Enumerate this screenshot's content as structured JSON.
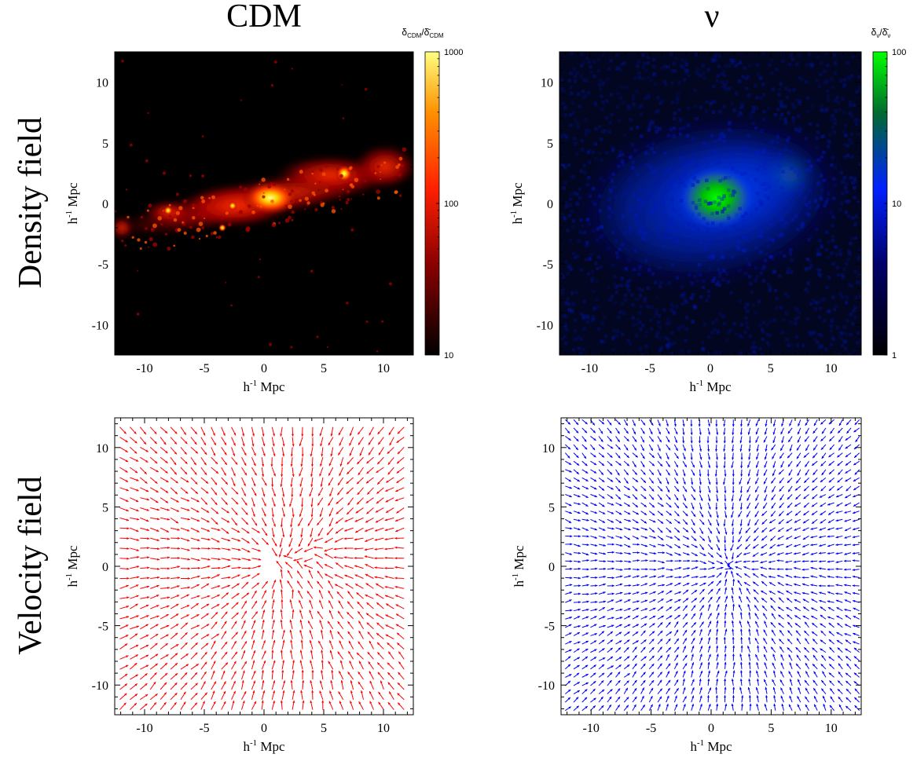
{
  "figure": {
    "column_titles": [
      "CDM",
      "ν"
    ],
    "row_labels": [
      "Density field",
      "Velocity field"
    ]
  },
  "chart_data": [
    {
      "type": "heatmap",
      "panel": "CDM density",
      "xlabel": "h-1 Mpc",
      "ylabel": "h-1 Mpc",
      "xlim": [
        -12.5,
        12.5
      ],
      "ylim": [
        -12.5,
        12.5
      ],
      "xticks": [
        -10,
        -5,
        0,
        5,
        10
      ],
      "yticks": [
        -10,
        -5,
        0,
        5,
        10
      ],
      "colorbar": {
        "label": "δCDM/δ̄CDM",
        "scale": "log",
        "range": [
          10,
          1000
        ],
        "ticks": [
          "1000",
          "100",
          "10"
        ],
        "colors": [
          "#000000",
          "#8b0000",
          "#ff2000",
          "#ff9000",
          "#ffff80"
        ]
      },
      "features": [
        {
          "x": 0.5,
          "y": 0.2,
          "peak": 1000,
          "label": "main halo"
        },
        {
          "x": 6.5,
          "y": 2.2,
          "peak": 700,
          "label": "secondary halo"
        },
        {
          "x": -8.0,
          "y": -0.8,
          "peak": 200,
          "label": "filament knot"
        },
        {
          "x": -2.5,
          "y": -1.5,
          "peak": 250,
          "label": "filament knot"
        },
        {
          "x": -12.0,
          "y": -2.0,
          "peak": 150,
          "label": "edge clump"
        }
      ]
    },
    {
      "type": "heatmap",
      "panel": "neutrino density",
      "xlabel": "h-1 Mpc",
      "ylabel": "h-1 Mpc",
      "xlim": [
        -12.5,
        12.5
      ],
      "ylim": [
        -12.5,
        12.5
      ],
      "xticks": [
        -10,
        -5,
        0,
        5,
        10
      ],
      "yticks": [
        -10,
        -5,
        0,
        5,
        10
      ],
      "colorbar": {
        "label": "δν/δ̄ν",
        "scale": "log",
        "range": [
          1,
          100
        ],
        "ticks": [
          "100",
          "10",
          "1"
        ],
        "colors": [
          "#000000",
          "#00006a",
          "#0020ff",
          "#008a00",
          "#00ff00"
        ]
      },
      "features": [
        {
          "x": 0.5,
          "y": 0.2,
          "peak": 100,
          "label": "main halo"
        },
        {
          "x": 6.5,
          "y": 2.0,
          "peak": 12,
          "label": "secondary halo"
        }
      ]
    },
    {
      "type": "scatter",
      "panel": "CDM velocity",
      "color": "#ff0000",
      "xlabel": "h-1 Mpc",
      "ylabel": "h-1 Mpc",
      "xlim": [
        -12.5,
        12.5
      ],
      "ylim": [
        -12.5,
        12.5
      ],
      "xticks": [
        -10,
        -5,
        0,
        5,
        10
      ],
      "yticks": [
        -10,
        -5,
        0,
        5,
        10
      ],
      "field": {
        "kind": "infall",
        "centers": [
          {
            "x": 0.5,
            "y": 0.2
          },
          {
            "x": 6.5,
            "y": 2.2
          }
        ],
        "grid_spacing": 0.85
      }
    },
    {
      "type": "scatter",
      "panel": "neutrino velocity",
      "color": "#0000ff",
      "xlabel": "h-1 Mpc",
      "ylabel": "h-1 Mpc",
      "xlim": [
        -12.5,
        12.5
      ],
      "ylim": [
        -12.5,
        12.5
      ],
      "xticks": [
        -10,
        -5,
        0,
        5,
        10
      ],
      "yticks": [
        -10,
        -5,
        0,
        5,
        10
      ],
      "field": {
        "kind": "infall",
        "centers": [
          {
            "x": 1.5,
            "y": 0.0
          }
        ],
        "grid_spacing": 0.7
      }
    }
  ]
}
